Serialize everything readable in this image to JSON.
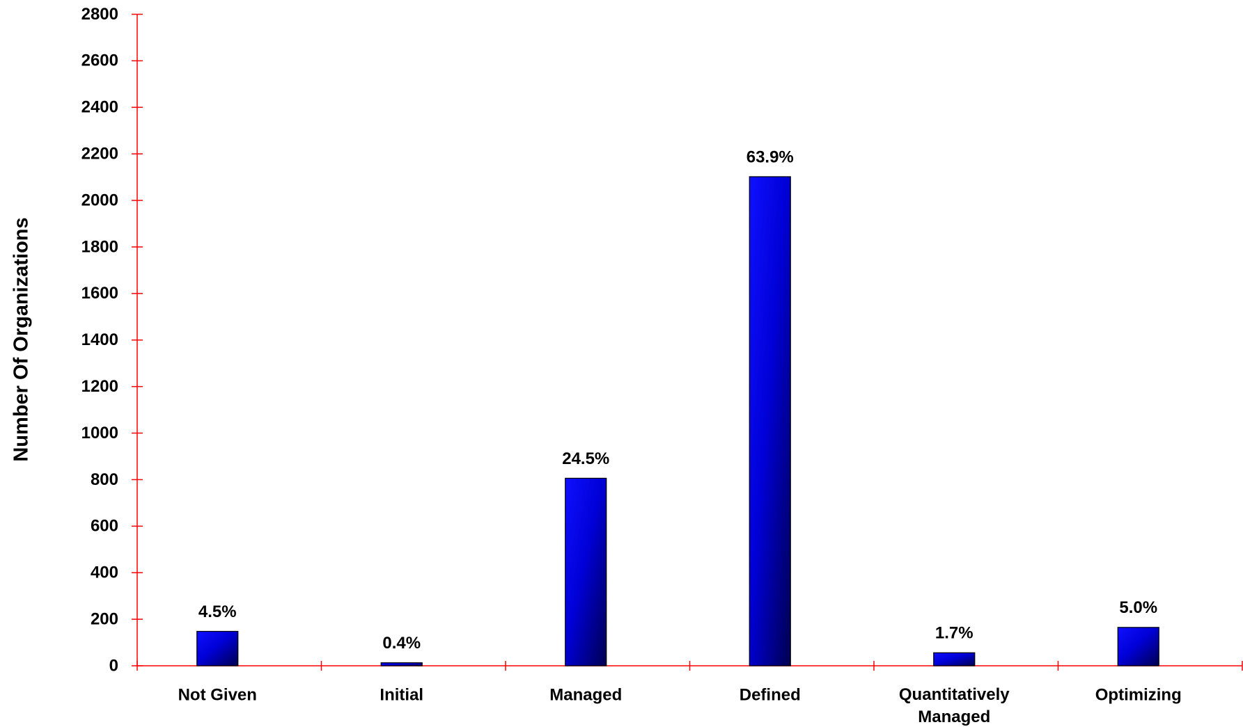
{
  "chart_data": {
    "type": "bar",
    "y_label": "Number Of Organizations",
    "categories": [
      "Not Given",
      "Initial",
      "Managed",
      "Defined",
      "Quantitatively Managed",
      "Optimizing"
    ],
    "values": [
      148,
      13,
      806,
      2102,
      56,
      165
    ],
    "value_labels": [
      "4.5%",
      "0.4%",
      "24.5%",
      "63.9%",
      "1.7%",
      "5.0%"
    ],
    "color": "#0000ff",
    "axis_color": "#ff0000",
    "ylim": [
      0,
      2800
    ],
    "yticks": [
      0,
      200,
      400,
      600,
      800,
      1000,
      1200,
      1400,
      1600,
      1800,
      2000,
      2200,
      2400,
      2600,
      2800
    ],
    "grid": false
  }
}
